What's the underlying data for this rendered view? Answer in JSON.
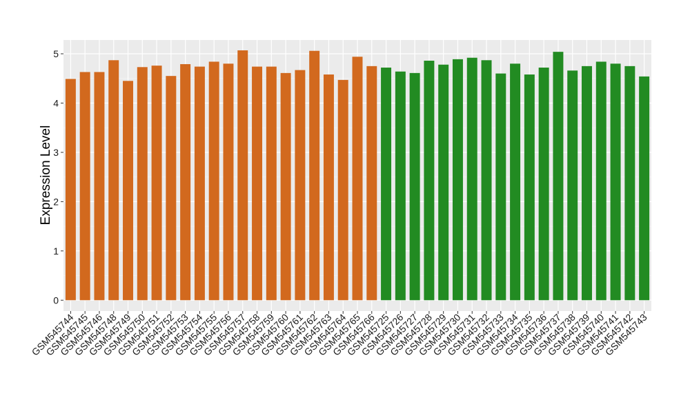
{
  "chart_data": {
    "type": "bar",
    "title": "",
    "xlabel": "",
    "ylabel": "Expression Level",
    "ylim": [
      -0.22,
      5.28
    ],
    "yticks": [
      0,
      1,
      2,
      3,
      4,
      5
    ],
    "grid": true,
    "panel_background": "#ebebeb",
    "categories": [
      "GSM545744",
      "GSM545745",
      "GSM545746",
      "GSM545748",
      "GSM545749",
      "GSM545750",
      "GSM545751",
      "GSM545752",
      "GSM545753",
      "GSM545754",
      "GSM545755",
      "GSM545756",
      "GSM545757",
      "GSM545758",
      "GSM545759",
      "GSM545760",
      "GSM545761",
      "GSM545762",
      "GSM545763",
      "GSM545764",
      "GSM545765",
      "GSM545766",
      "GSM545725",
      "GSM545726",
      "GSM545727",
      "GSM545728",
      "GSM545729",
      "GSM545730",
      "GSM545731",
      "GSM545732",
      "GSM545733",
      "GSM545734",
      "GSM545735",
      "GSM545736",
      "GSM545737",
      "GSM545738",
      "GSM545739",
      "GSM545740",
      "GSM545741",
      "GSM545742",
      "GSM545743"
    ],
    "values": [
      4.49,
      4.63,
      4.63,
      4.87,
      4.45,
      4.73,
      4.76,
      4.55,
      4.79,
      4.74,
      4.84,
      4.8,
      5.07,
      4.74,
      4.74,
      4.61,
      4.67,
      5.06,
      4.58,
      4.47,
      4.94,
      4.75,
      4.72,
      4.64,
      4.61,
      4.86,
      4.78,
      4.89,
      4.92,
      4.87,
      4.6,
      4.8,
      4.58,
      4.72,
      5.04,
      4.66,
      4.75,
      4.84,
      4.8,
      4.75,
      4.54
    ],
    "groups": [
      {
        "start": 0,
        "end": 21,
        "color": "#d2691e"
      },
      {
        "start": 22,
        "end": 40,
        "color": "#228b22"
      }
    ]
  }
}
